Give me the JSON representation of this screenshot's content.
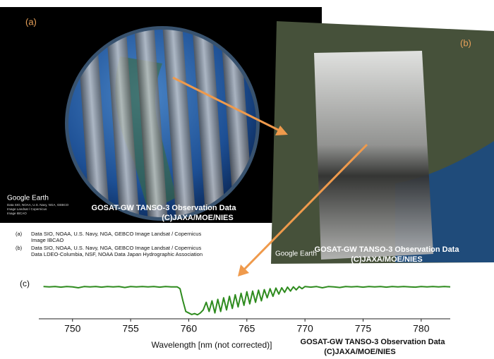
{
  "panel_a": {
    "label": "(a)",
    "logo": "Google Earth",
    "credits": [
      "Data SIO, NOAA, U.S. Navy, NGA, GEBCO",
      "Image Landsat / Copernicus",
      "Image IBCAO"
    ],
    "caption": [
      "GOSAT-GW TANSO-3 Observation Data",
      "(C)JAXA/MOE/NIES"
    ]
  },
  "panel_b": {
    "label": "(b)",
    "logo": "Google Earth",
    "caption": [
      "GOSAT-GW TANSO-3 Observation Data",
      "(C)JAXA/MOE/NIES"
    ]
  },
  "attributions": [
    {
      "label": "(a)",
      "lines": [
        "Data SIO, NOAA, U.S. Navy, NGA, GEBCO Image Landsat / Copernicus",
        "Image IBCAO"
      ]
    },
    {
      "label": "(b)",
      "lines": [
        "Data SIO, NOAA, U.S. Navy, NGA, GEBCO Image Landsat / Copernicus",
        "Data LDEO-Columbia, NSF, NOAA Data Japan Hydrographic Association"
      ]
    }
  ],
  "chart_data": {
    "type": "line",
    "label": "(c)",
    "xlabel": "Wavelength [nm (not corrected)]",
    "annotations": [
      "GOSAT-GW TANSO-3 Observation Data",
      "(C)JAXA/MOE/NIES"
    ],
    "xlim": [
      747.1,
      782.5
    ],
    "ylim": [
      0,
      1
    ],
    "xticks": [
      750,
      755,
      760,
      765,
      770,
      775,
      780
    ],
    "series": [
      {
        "color": "#2e8b1e",
        "x": [
          747.5,
          748,
          748.5,
          749,
          749.5,
          750,
          750.5,
          751,
          751.5,
          752,
          752.5,
          753,
          753.5,
          754,
          754.5,
          755,
          755.5,
          756,
          756.5,
          757,
          757.5,
          758,
          758.5,
          759,
          759.25,
          759.5,
          759.75,
          760,
          760.25,
          760.5,
          760.75,
          761,
          761.25,
          761.5,
          761.75,
          762,
          762.25,
          762.5,
          762.75,
          763,
          763.25,
          763.5,
          763.75,
          764,
          764.25,
          764.5,
          764.75,
          765,
          765.25,
          765.5,
          765.75,
          766,
          766.25,
          766.5,
          766.75,
          767,
          767.25,
          767.5,
          767.75,
          768,
          768.25,
          768.5,
          768.75,
          769,
          769.25,
          769.5,
          769.75,
          770,
          770.5,
          771,
          771.5,
          772,
          772.5,
          773,
          773.5,
          774,
          774.5,
          775,
          775.5,
          776,
          776.5,
          777,
          777.5,
          778,
          778.5,
          779,
          779.5,
          780,
          780.5,
          781,
          781.5,
          782,
          782.5
        ],
        "values": [
          0.97,
          0.96,
          0.97,
          0.95,
          0.97,
          0.96,
          0.93,
          0.97,
          0.96,
          0.97,
          0.95,
          0.97,
          0.96,
          0.97,
          0.94,
          0.97,
          0.96,
          0.97,
          0.96,
          0.97,
          0.95,
          0.97,
          0.96,
          0.96,
          0.9,
          0.5,
          0.15,
          0.1,
          0.05,
          0.08,
          0.04,
          0.1,
          0.2,
          0.45,
          0.15,
          0.5,
          0.1,
          0.55,
          0.15,
          0.6,
          0.2,
          0.65,
          0.25,
          0.7,
          0.3,
          0.75,
          0.35,
          0.8,
          0.4,
          0.82,
          0.45,
          0.85,
          0.5,
          0.87,
          0.6,
          0.9,
          0.65,
          0.92,
          0.72,
          0.93,
          0.78,
          0.95,
          0.82,
          0.96,
          0.86,
          0.97,
          0.9,
          0.97,
          0.95,
          0.97,
          0.93,
          0.97,
          0.96,
          0.94,
          0.97,
          0.96,
          0.97,
          0.95,
          0.97,
          0.96,
          0.97,
          0.95,
          0.97,
          0.96,
          0.97,
          0.96,
          0.95,
          0.97,
          0.96,
          0.97,
          0.96,
          0.97,
          0.96
        ]
      }
    ]
  }
}
